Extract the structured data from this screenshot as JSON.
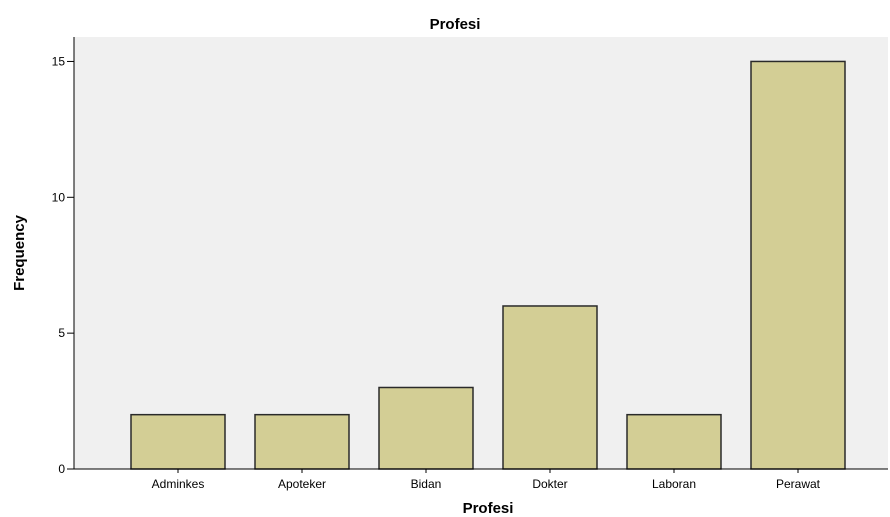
{
  "chart_data": {
    "type": "bar",
    "title": "Profesi",
    "xlabel": "Profesi",
    "ylabel": "Frequency",
    "categories": [
      "Adminkes",
      "Apoteker",
      "Bidan",
      "Dokter",
      "Laboran",
      "Perawat"
    ],
    "values": [
      2,
      2,
      3,
      6,
      2,
      15
    ],
    "yticks": [
      "0",
      "5",
      "10",
      "15"
    ],
    "ylim": [
      0,
      15.9
    ],
    "grid": false,
    "legend": "none",
    "colors": {
      "bar_fill": "#d3ce95",
      "bar_stroke": "#2a2a2a",
      "plot_background": "#f0f0f0",
      "axis": "#000000"
    }
  }
}
